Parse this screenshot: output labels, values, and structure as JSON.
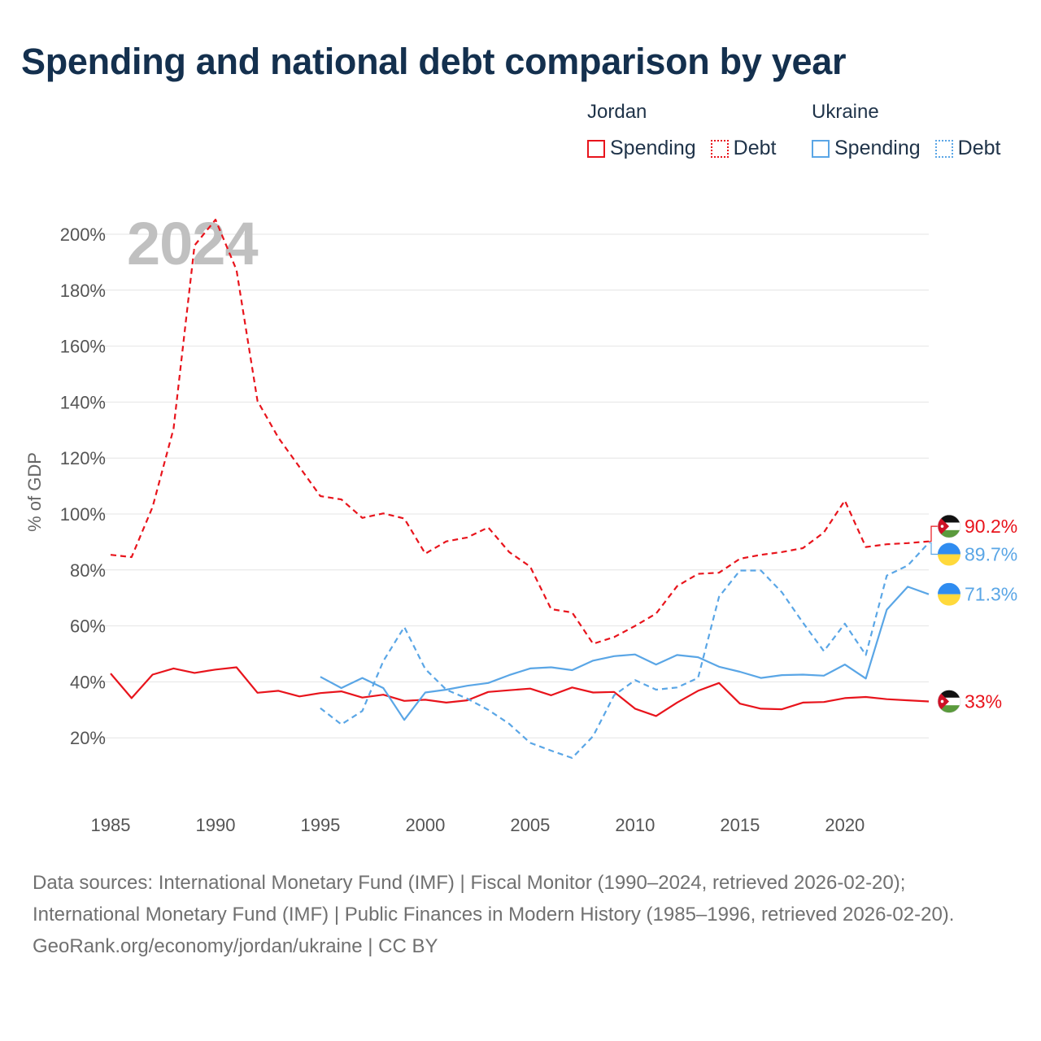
{
  "title": "Spending and national debt comparison by year",
  "legend": {
    "groups": [
      {
        "country": "Jordan",
        "color": "#e8141c",
        "items": [
          {
            "label": "Spending",
            "style": "solid"
          },
          {
            "label": "Debt",
            "style": "dotted"
          }
        ]
      },
      {
        "country": "Ukraine",
        "color": "#5aa6e6",
        "items": [
          {
            "label": "Spending",
            "style": "solid"
          },
          {
            "label": "Debt",
            "style": "dotted"
          }
        ]
      }
    ]
  },
  "year_watermark": "2024",
  "end_labels": {
    "jordan_debt": "90.2%",
    "ukraine_debt": "89.7%",
    "ukraine_spending": "71.3%",
    "jordan_spending": "33%"
  },
  "footer": {
    "sources": "Data sources: International Monetary Fund (IMF) | Fiscal Monitor (1990–2024, retrieved 2026-02-20); International Monetary Fund (IMF) | Public Finances in Modern History (1985–1996, retrieved 2026-02-20).",
    "attribution": "GeoRank.org/economy/jordan/ukraine | CC BY"
  },
  "chart_data": {
    "type": "line",
    "title": "Spending and national debt comparison by year",
    "xlabel": "",
    "ylabel": "% of GDP",
    "xlim": [
      1985,
      2024
    ],
    "ylim": [
      0,
      210
    ],
    "x_ticks": [
      1985,
      1990,
      1995,
      2000,
      2005,
      2010,
      2015,
      2020
    ],
    "y_ticks": [
      20,
      40,
      60,
      80,
      100,
      120,
      140,
      160,
      180,
      200
    ],
    "y_tick_labels": [
      "20%",
      "40%",
      "60%",
      "80%",
      "100%",
      "120%",
      "140%",
      "160%",
      "180%",
      "200%"
    ],
    "x_tick_labels": [
      "1985",
      "1990",
      "1995",
      "2000",
      "2005",
      "2010",
      "2015",
      "2020"
    ],
    "grid": true,
    "series": [
      {
        "name": "Jordan Spending",
        "color": "#e8141c",
        "dash": "solid",
        "x": [
          1985,
          1986,
          1987,
          1988,
          1989,
          1990,
          1991,
          1992,
          1993,
          1994,
          1995,
          1996,
          1997,
          1998,
          1999,
          2000,
          2001,
          2002,
          2003,
          2004,
          2005,
          2006,
          2007,
          2008,
          2009,
          2010,
          2011,
          2012,
          2013,
          2014,
          2015,
          2016,
          2017,
          2018,
          2019,
          2020,
          2021,
          2022,
          2023,
          2024
        ],
        "values": [
          43,
          34.2,
          42.6,
          44.8,
          43.2,
          44.4,
          45.2,
          36.1,
          36.8,
          34.8,
          36,
          36.6,
          34.4,
          35.4,
          33.2,
          33.6,
          32.6,
          33.4,
          36.4,
          37,
          37.6,
          35.2,
          38,
          36.2,
          36.4,
          30.4,
          27.8,
          32.6,
          36.8,
          39.6,
          32.2,
          30.4,
          30.2,
          32.6,
          32.8,
          34.2,
          34.6,
          33.8,
          33.4,
          33
        ]
      },
      {
        "name": "Jordan Debt",
        "color": "#e8141c",
        "dash": "dashed",
        "x": [
          1985,
          1986,
          1987,
          1988,
          1989,
          1990,
          1991,
          1992,
          1993,
          1994,
          1995,
          1996,
          1997,
          1998,
          1999,
          2000,
          2001,
          2002,
          2003,
          2004,
          2005,
          2006,
          2007,
          2008,
          2009,
          2010,
          2011,
          2012,
          2013,
          2014,
          2015,
          2016,
          2017,
          2018,
          2019,
          2020,
          2021,
          2022,
          2023,
          2024
        ],
        "values": [
          85.4,
          84.6,
          102.5,
          130.5,
          196,
          205.2,
          187.2,
          140.4,
          127.2,
          116.8,
          106.4,
          105.2,
          98.6,
          100.2,
          98.4,
          85.8,
          90.2,
          91.6,
          95.2,
          86.4,
          81.2,
          66,
          64.8,
          53.6,
          56,
          60,
          64.4,
          74.2,
          78.6,
          79,
          84,
          85.4,
          86.4,
          87.8,
          93.4,
          104.8,
          88.2,
          89.2,
          89.6,
          90.2
        ]
      },
      {
        "name": "Ukraine Spending",
        "color": "#5aa6e6",
        "dash": "solid",
        "x": [
          1995,
          1996,
          1997,
          1998,
          1999,
          2000,
          2001,
          2002,
          2003,
          2004,
          2005,
          2006,
          2007,
          2008,
          2009,
          2010,
          2011,
          2012,
          2013,
          2014,
          2015,
          2016,
          2017,
          2018,
          2019,
          2020,
          2021,
          2022,
          2023,
          2024
        ],
        "values": [
          41.8,
          37.8,
          41.4,
          37.8,
          26.4,
          36.2,
          37.2,
          38.6,
          39.6,
          42.4,
          44.8,
          45.2,
          44.2,
          47.6,
          49.2,
          49.8,
          46.2,
          49.6,
          48.8,
          45.4,
          43.6,
          41.4,
          42.4,
          42.6,
          42.2,
          46.2,
          41.2,
          65.8,
          74,
          71.3
        ]
      },
      {
        "name": "Ukraine Debt",
        "color": "#5aa6e6",
        "dash": "dashed",
        "x": [
          1995,
          1996,
          1997,
          1998,
          1999,
          2000,
          2001,
          2002,
          2003,
          2004,
          2005,
          2006,
          2007,
          2008,
          2009,
          2010,
          2011,
          2012,
          2013,
          2014,
          2015,
          2016,
          2017,
          2018,
          2019,
          2020,
          2021,
          2022,
          2023,
          2024
        ],
        "values": [
          30.6,
          24.8,
          29.6,
          47.4,
          59.6,
          44.6,
          37.2,
          34,
          30,
          25,
          18.2,
          15.4,
          12.8,
          20.6,
          35.2,
          40.6,
          37.2,
          38,
          41.4,
          70.4,
          79.8,
          79.8,
          72,
          61.2,
          51,
          60.8,
          49.6,
          78,
          81.6,
          89.7
        ]
      }
    ]
  }
}
